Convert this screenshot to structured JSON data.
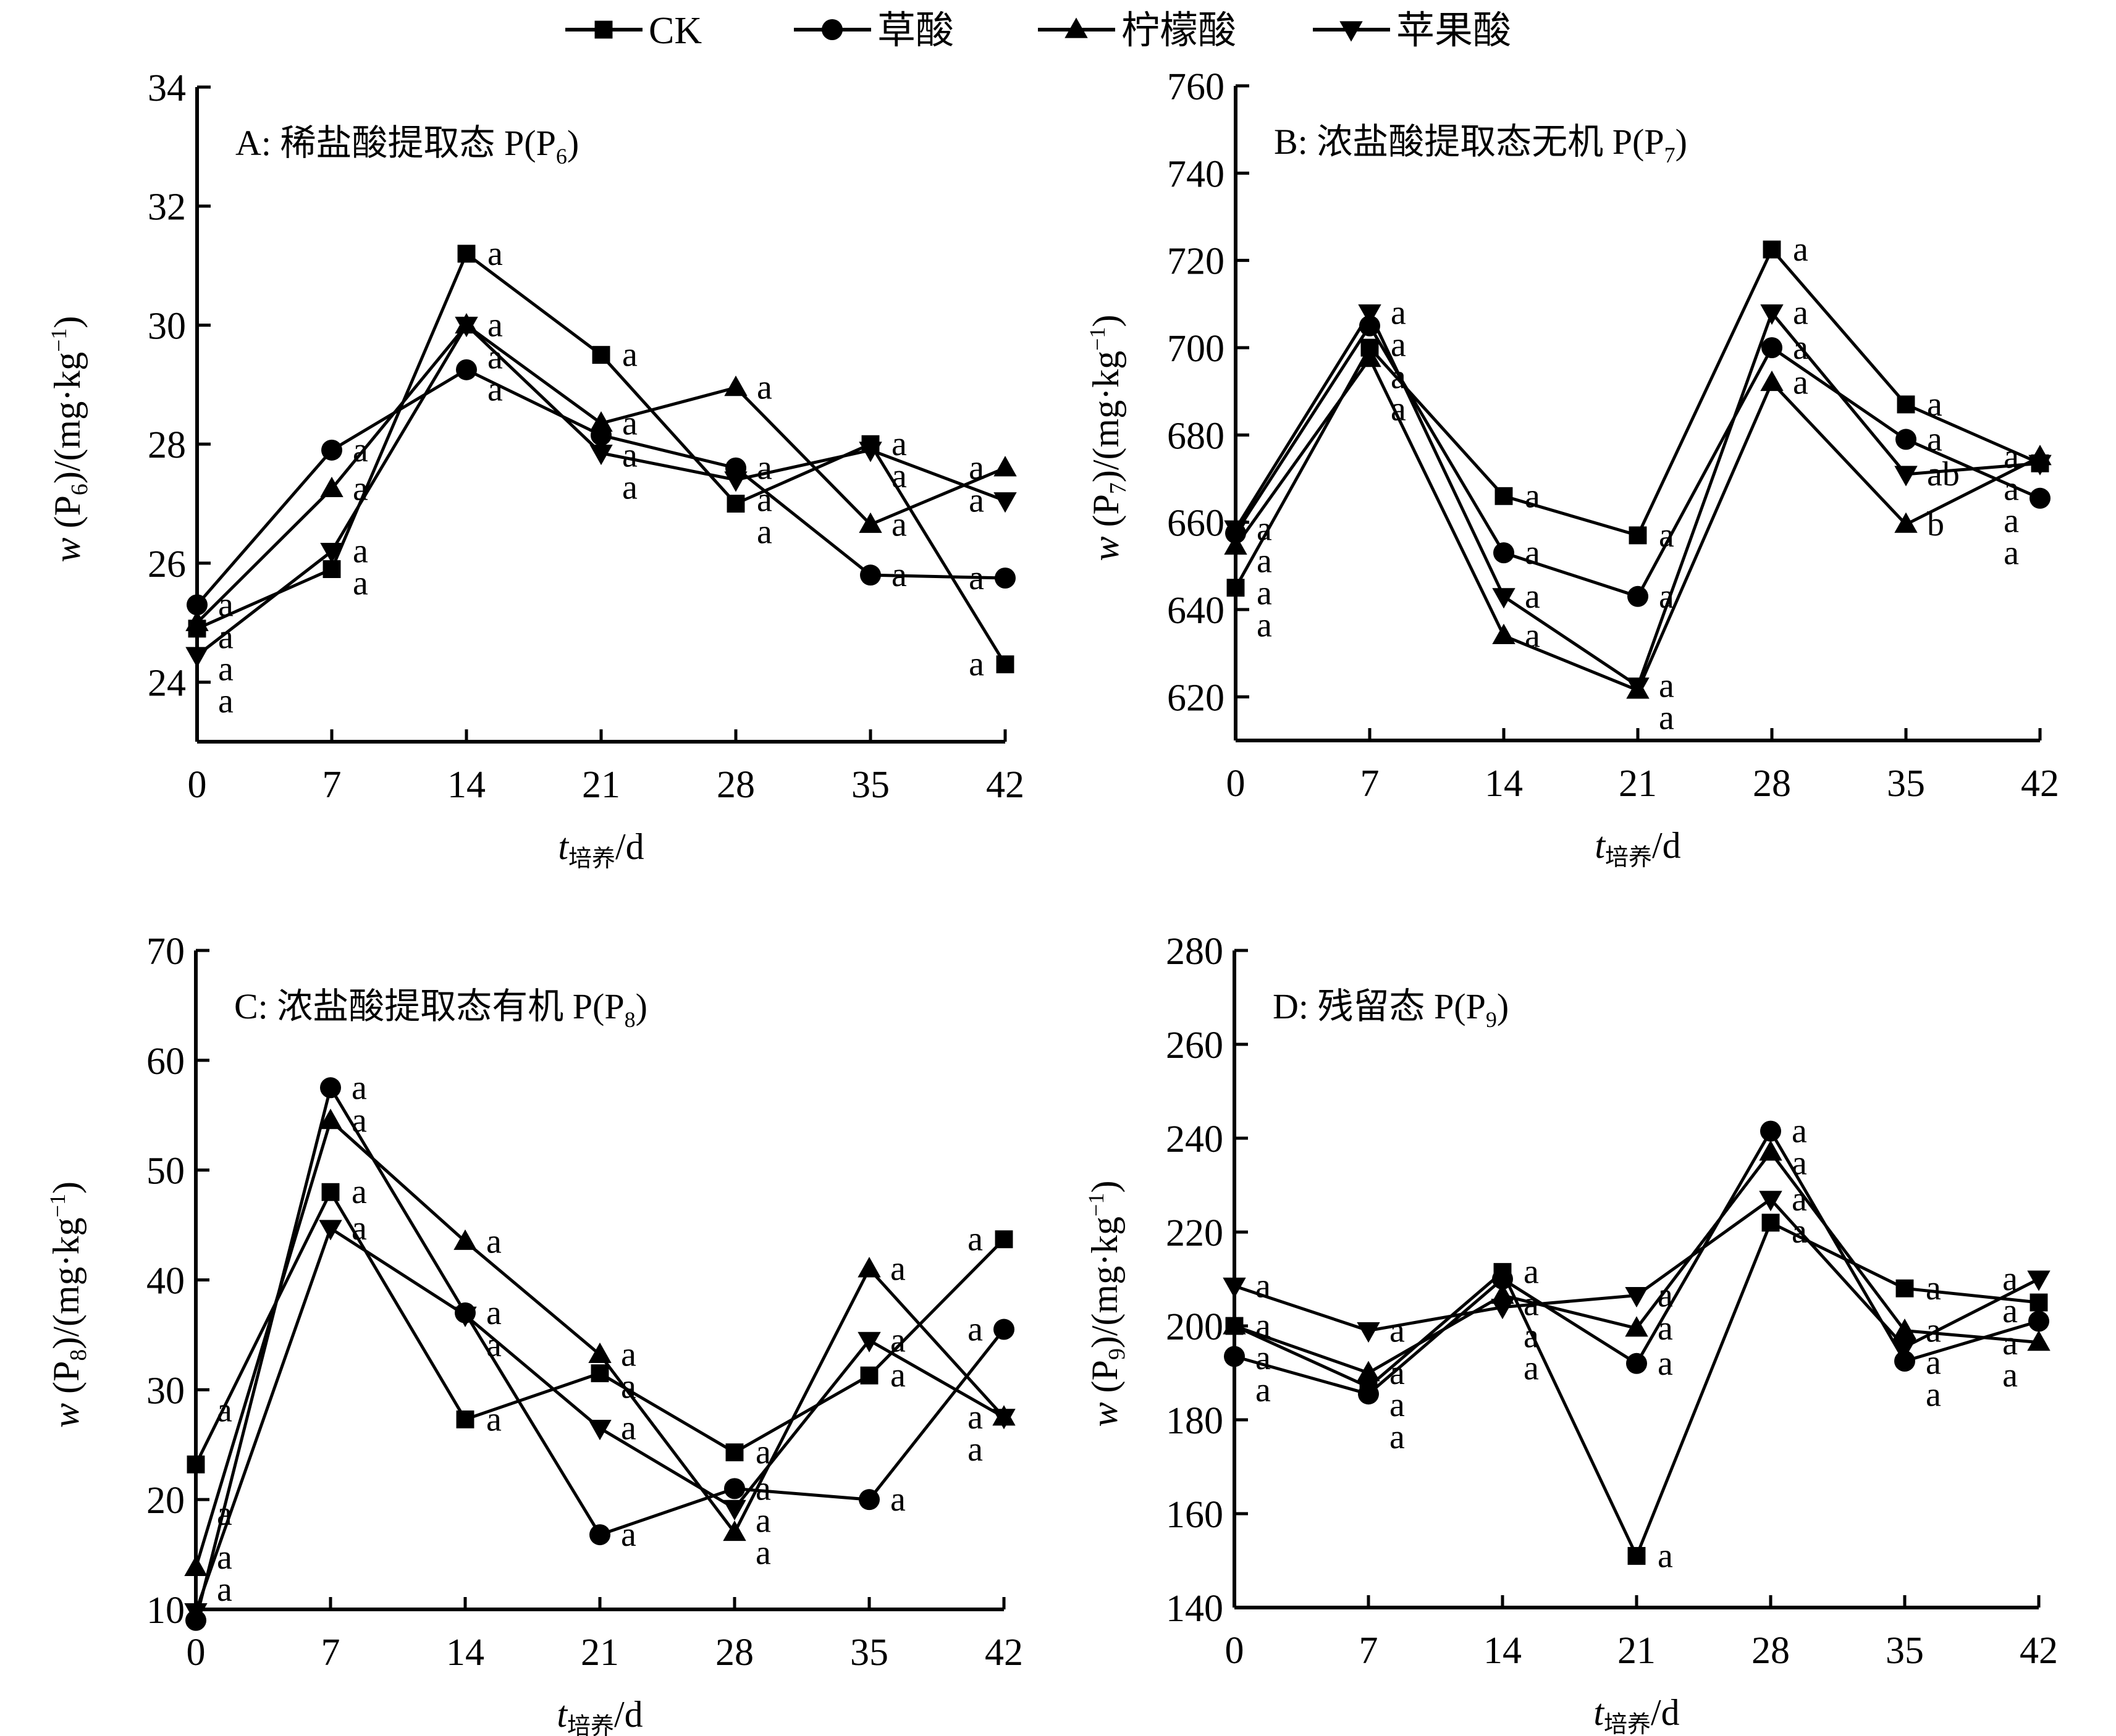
{
  "legend": {
    "entries": [
      {
        "name": "CK",
        "marker": "square"
      },
      {
        "name": "草酸",
        "marker": "circle"
      },
      {
        "name": "柠檬酸",
        "marker": "triangle-up"
      },
      {
        "name": "苹果酸",
        "marker": "triangle-down"
      }
    ]
  },
  "chart_data": [
    {
      "type": "line",
      "panel": "A",
      "title": "A: 稀盐酸提取态 P(P",
      "title_sub": "6",
      "xlabel": "t",
      "xlabel_sub": "培养",
      "xlabel_unit": "/d",
      "ylabel": "w (P",
      "ylabel_sub": "6",
      "ylabel_unit": ")/(mg·kg",
      "ylabel_sup": "−1",
      "x": [
        0,
        7,
        14,
        21,
        28,
        35,
        42
      ],
      "xlim": [
        0,
        42
      ],
      "ylim": [
        23,
        34
      ],
      "yticks": [
        24,
        26,
        28,
        30,
        32,
        34
      ],
      "grid": false,
      "series": [
        {
          "name": "CK",
          "values": [
            24.9,
            25.9,
            31.2,
            29.5,
            27.0,
            28.0,
            24.3
          ],
          "sig": [
            "a",
            "a",
            "a",
            "a",
            "a",
            "a",
            "a"
          ]
        },
        {
          "name": "草酸",
          "values": [
            25.3,
            27.9,
            29.25,
            28.15,
            27.6,
            25.8,
            25.75
          ],
          "sig": [
            "a",
            "a",
            "a",
            "a",
            "a",
            "a",
            "a"
          ]
        },
        {
          "name": "柠檬酸",
          "values": [
            25.0,
            27.25,
            30.0,
            28.35,
            28.95,
            26.65,
            27.6
          ],
          "sig": [
            "a",
            "a",
            "a",
            "a",
            "a",
            "a",
            "a"
          ]
        },
        {
          "name": "苹果酸",
          "values": [
            24.45,
            26.2,
            30.0,
            27.85,
            27.4,
            27.9,
            27.05
          ],
          "sig": [
            "a",
            "a",
            "a",
            "a",
            "a",
            "a",
            "a"
          ]
        }
      ]
    },
    {
      "type": "line",
      "panel": "B",
      "title": "B: 浓盐酸提取态无机 P(P",
      "title_sub": "7",
      "xlabel": "t",
      "xlabel_sub": "培养",
      "xlabel_unit": "/d",
      "ylabel": "w (P",
      "ylabel_sub": "7",
      "ylabel_unit": ")/(mg·kg",
      "ylabel_sup": "−1",
      "x": [
        0,
        7,
        14,
        21,
        28,
        35,
        42
      ],
      "xlim": [
        0,
        42
      ],
      "ylim": [
        610,
        760
      ],
      "yticks": [
        620,
        640,
        660,
        680,
        700,
        720,
        740,
        760
      ],
      "grid": false,
      "series": [
        {
          "name": "CK",
          "values": [
            645,
            700,
            666,
            657,
            722.5,
            687,
            673.5
          ],
          "sig": [
            "a",
            "a",
            "a",
            "a",
            "a",
            "a",
            "a"
          ]
        },
        {
          "name": "草酸",
          "values": [
            657.5,
            705,
            653,
            643,
            700,
            679,
            665.5
          ],
          "sig": [
            "a",
            "a",
            "a",
            "a",
            "a",
            "a",
            "a"
          ]
        },
        {
          "name": "柠檬酸",
          "values": [
            654.5,
            697.5,
            634,
            621.5,
            692,
            659.5,
            675
          ],
          "sig": [
            "a",
            "a",
            "a",
            "a",
            "a",
            "b",
            "a"
          ]
        },
        {
          "name": "苹果酸",
          "values": [
            658.5,
            708,
            643,
            622.5,
            708,
            671,
            673.5
          ],
          "sig": [
            "a",
            "a",
            "a",
            "a",
            "a",
            "ab",
            "a"
          ]
        }
      ]
    },
    {
      "type": "line",
      "panel": "C",
      "title": "C: 浓盐酸提取态有机 P(P",
      "title_sub": "8",
      "xlabel": "t",
      "xlabel_sub": "培养",
      "xlabel_unit": "/d",
      "ylabel": "w (P",
      "ylabel_sub": "8",
      "ylabel_unit": ")/(mg·kg",
      "ylabel_sup": "−1",
      "x": [
        0,
        7,
        14,
        21,
        28,
        35,
        42
      ],
      "xlim": [
        0,
        42
      ],
      "ylim": [
        10,
        70
      ],
      "yticks": [
        10,
        20,
        30,
        40,
        50,
        60,
        70
      ],
      "grid": false,
      "series": [
        {
          "name": "CK",
          "values": [
            23.2,
            48.0,
            27.3,
            31.5,
            24.3,
            31.3,
            43.7
          ],
          "sig": [
            "a",
            "a",
            "a",
            "a",
            "a",
            "a",
            "a"
          ]
        },
        {
          "name": "草酸",
          "values": [
            9.0,
            57.5,
            37.0,
            16.8,
            21.0,
            20.0,
            35.5
          ],
          "sig": [
            "a",
            "a",
            "a",
            "a",
            "a",
            "a",
            "a"
          ]
        },
        {
          "name": "柠檬酸",
          "values": [
            13.8,
            54.5,
            43.5,
            33.2,
            17.0,
            41.0,
            27.5
          ],
          "sig": [
            "a",
            "a",
            "a",
            "a",
            "a",
            "a",
            "a"
          ]
        },
        {
          "name": "苹果酸",
          "values": [
            9.8,
            44.7,
            36.8,
            26.5,
            19.2,
            34.5,
            27.5
          ],
          "sig": [
            "a",
            "a",
            "a",
            "a",
            "a",
            "a",
            "a"
          ]
        }
      ]
    },
    {
      "type": "line",
      "panel": "D",
      "title": "D: 残留态 P(P",
      "title_sub": "9",
      "xlabel": "t",
      "xlabel_sub": "培养",
      "xlabel_unit": "/d",
      "ylabel": "w (P",
      "ylabel_sub": "9",
      "ylabel_unit": ")/(mg·kg",
      "ylabel_sup": "−1",
      "x": [
        0,
        7,
        14,
        21,
        28,
        35,
        42
      ],
      "xlim": [
        0,
        42
      ],
      "ylim": [
        140,
        280
      ],
      "yticks": [
        140,
        160,
        180,
        200,
        220,
        240,
        260,
        280
      ],
      "grid": false,
      "series": [
        {
          "name": "CK",
          "values": [
            200,
            187,
            211.5,
            151,
            222,
            208,
            205
          ],
          "sig": [
            "a",
            "a",
            "a",
            "a",
            "a",
            "a",
            "a"
          ]
        },
        {
          "name": "草酸",
          "values": [
            193.5,
            185.5,
            210,
            192,
            241.5,
            192.5,
            201
          ],
          "sig": [
            "a",
            "a",
            "a",
            "a",
            "a",
            "a",
            "a"
          ]
        },
        {
          "name": "柠檬酸",
          "values": [
            200,
            190,
            206.5,
            199.5,
            237,
            199,
            196.5
          ],
          "sig": [
            "a",
            "a",
            "a",
            "a",
            "a",
            "a",
            "a"
          ]
        },
        {
          "name": "苹果酸",
          "values": [
            208.5,
            199,
            204,
            206.5,
            227,
            195.5,
            210
          ],
          "sig": [
            "a",
            "a",
            "a",
            "a",
            "a",
            "a",
            "a"
          ]
        }
      ]
    }
  ]
}
